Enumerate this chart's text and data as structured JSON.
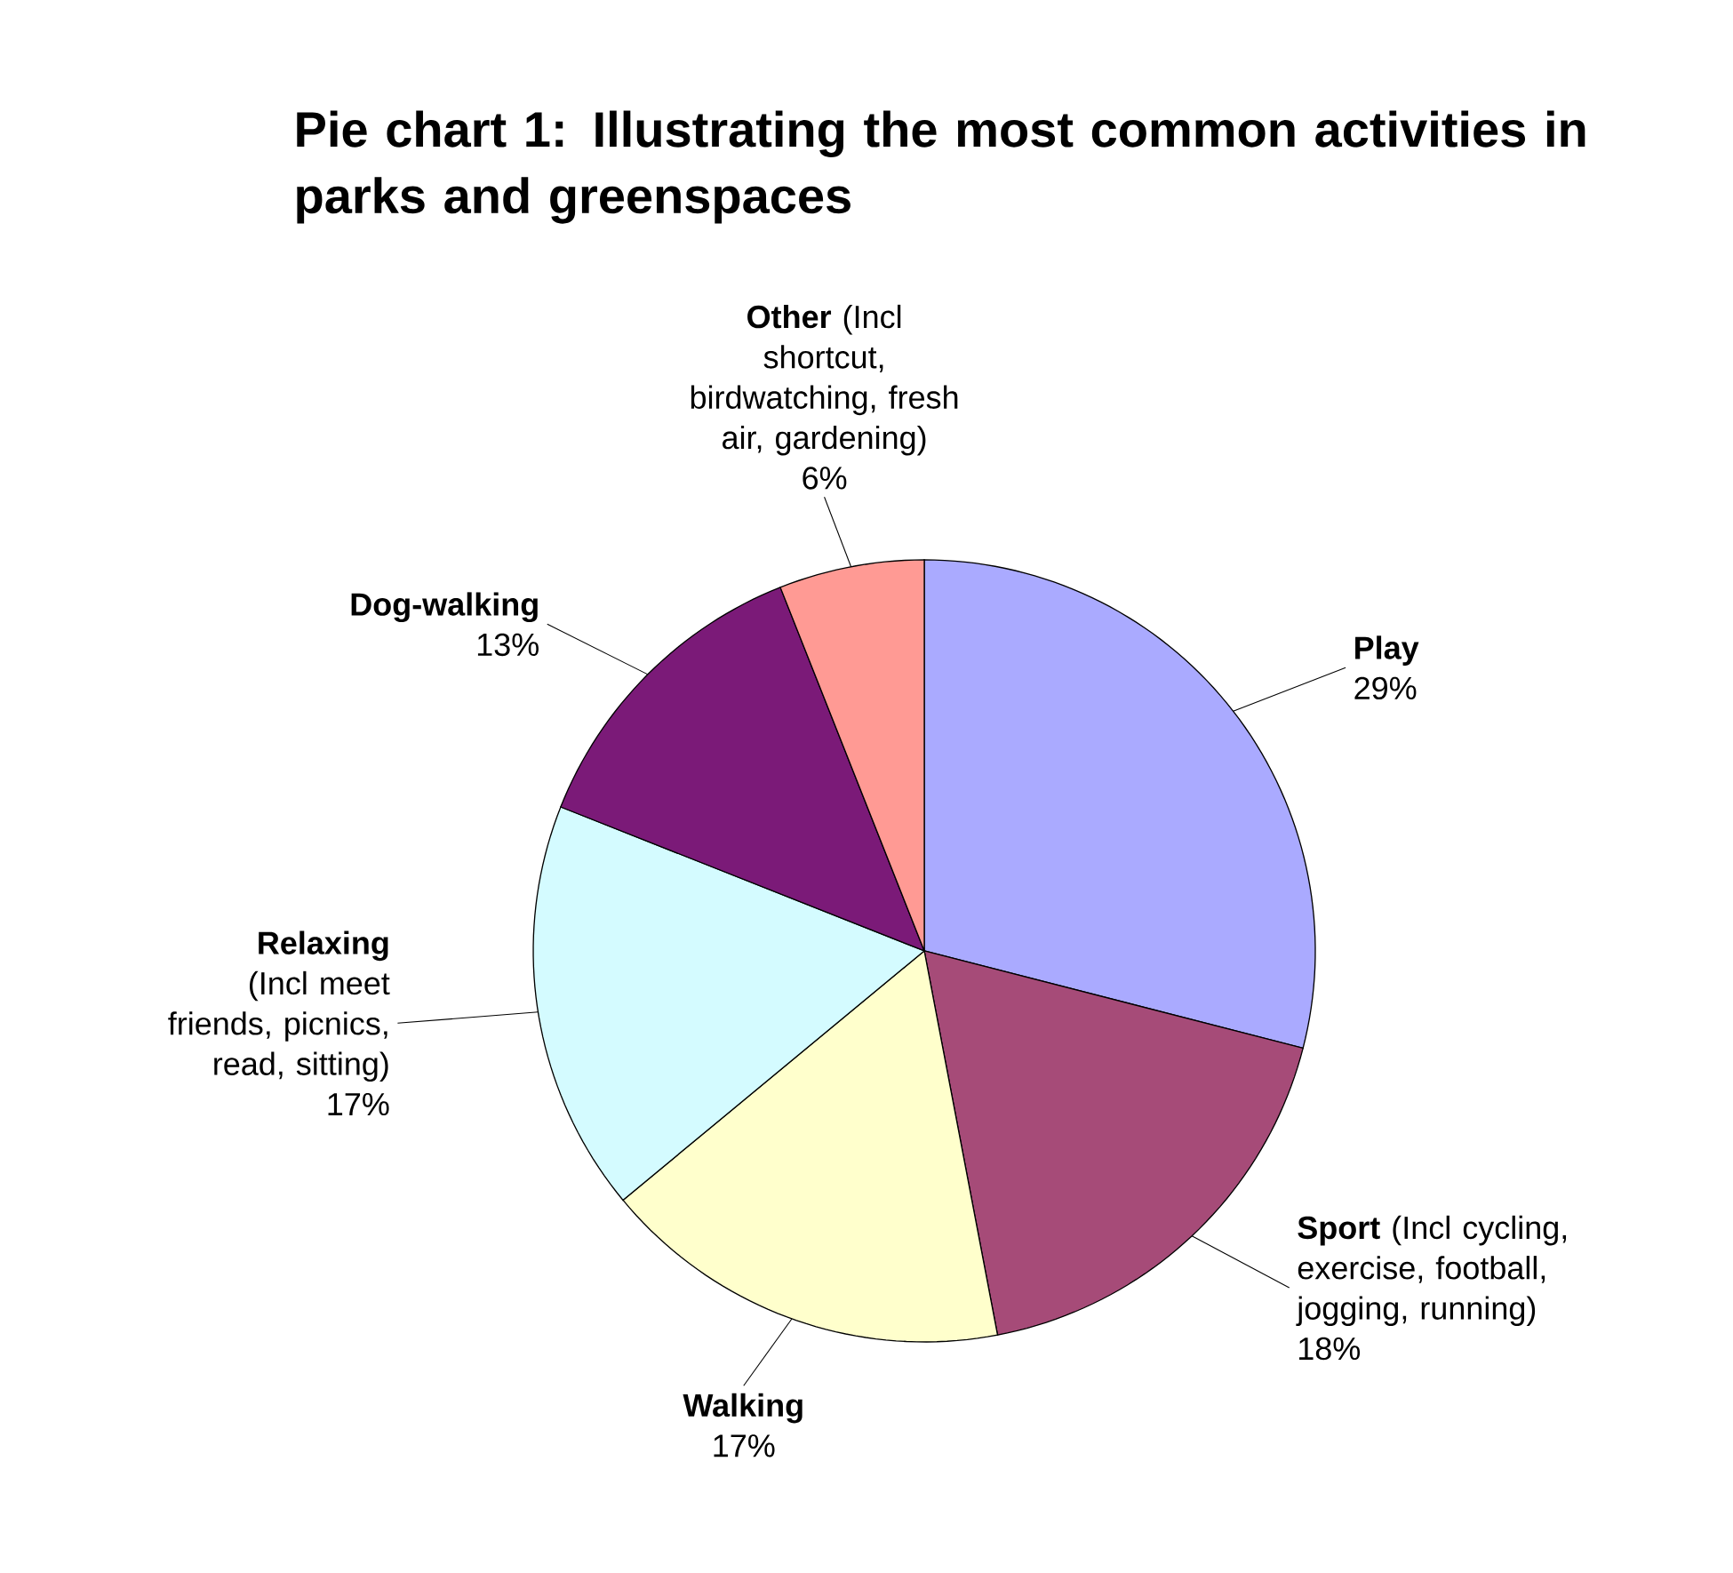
{
  "chart_data": {
    "type": "pie",
    "title": "Pie chart 1:  Illustrating the most common activities in parks and greenspaces",
    "categories": [
      "Play",
      "**Sport**  (Incl cycling, exercise, football, jogging, running)",
      "Walking",
      "**Relaxing**  (Incl meet friends, picnics, read, sitting)",
      "Dog-walking",
      "**Other**  (Incl shortcut, birdwatching, fresh air, gardening)"
    ],
    "values": [
      29,
      18,
      17,
      17,
      13,
      6
    ],
    "value_labels": [
      "29%",
      "18%",
      "17%",
      "17%",
      "13%",
      "6%"
    ],
    "colors": [
      "#aaaaff",
      "#a64b78",
      "#ffffcc",
      "#d4fbff",
      "#7b1a78",
      "#ff9a94"
    ]
  }
}
